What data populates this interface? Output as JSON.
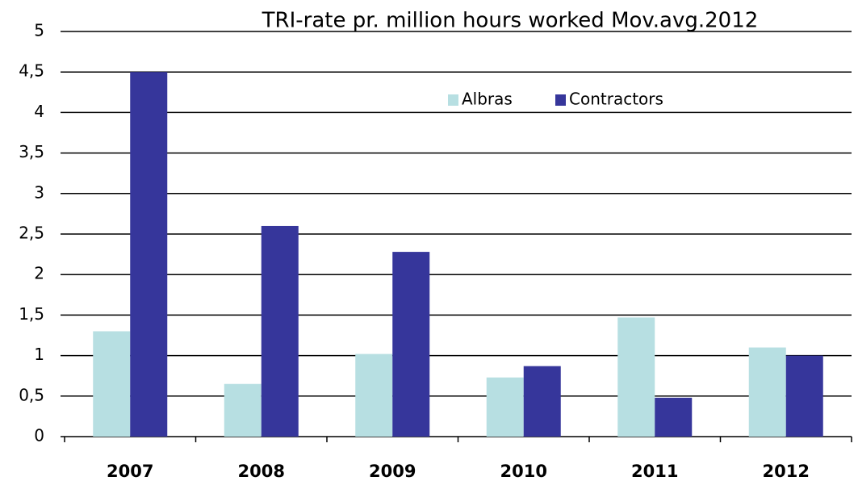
{
  "chart_data": {
    "type": "bar",
    "title": "TRI-rate pr. million hours worked  Mov.avg.2012",
    "categories": [
      "2007",
      "2008",
      "2009",
      "2010",
      "2011",
      "2012"
    ],
    "series": [
      {
        "name": "Albras",
        "color": "#b7dfe2",
        "values": [
          1.3,
          0.65,
          1.02,
          0.73,
          1.47,
          1.1
        ]
      },
      {
        "name": "Contractors",
        "color": "#36369b",
        "values": [
          4.5,
          2.6,
          2.28,
          0.87,
          0.48,
          1.0
        ]
      }
    ],
    "ylim": [
      0,
      5
    ],
    "yticks": [
      0,
      {
        "value": 0.5,
        "label": "0,5"
      },
      1,
      {
        "value": 1.5,
        "label": "1,5"
      },
      2,
      {
        "value": 2.5,
        "label": "2,5"
      },
      3,
      {
        "value": 3.5,
        "label": "3,5"
      },
      4,
      {
        "value": 4.5,
        "label": "4,5"
      },
      5
    ],
    "grid": true,
    "legend": "top"
  }
}
